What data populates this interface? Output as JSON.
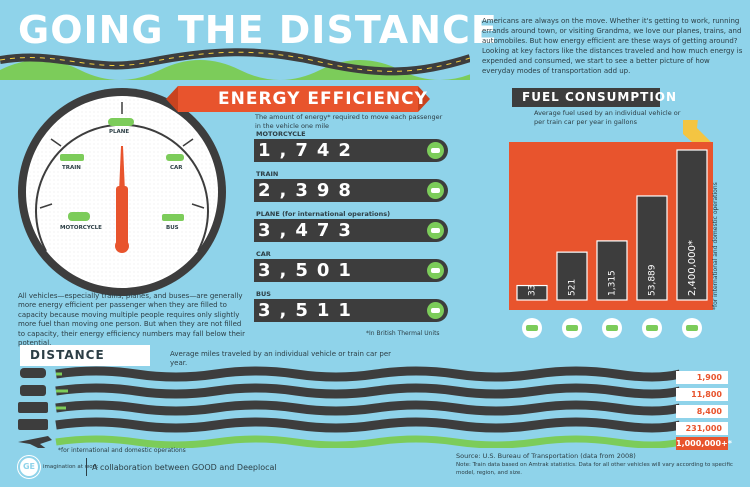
{
  "header": {
    "title": "GOING THE DISTANCE",
    "intro": "Americans are always on the move. Whether it's getting to work, running errands around town, or visiting Grandma, we love our planes, trains, and automobiles. But how energy efficient are these ways of getting around? Looking at key factors like the distances traveled and how much energy is expended and consumed, we start to see a better picture of how everyday modes of transportation add up."
  },
  "energy": {
    "title": "ENERGY EFFICIENCY",
    "description": "The amount of energy* required to move each passenger in the vehicle one mile",
    "footnote": "*In British Thermal Units",
    "body_text": "All vehicles—especially trains, planes, and buses—are generally more energy efficient per passenger when they are filled to capacity because moving multiple people requires only slightly more fuel than moving one person. But when they are not filled to capacity, their energy efficiency numbers may fall below their potential.",
    "gauge_labels": {
      "plane": "PLANE",
      "train": "TRAIN",
      "car": "CAR",
      "motorcycle": "MOTORCYCLE",
      "bus": "BUS"
    },
    "rows": [
      {
        "label": "MOTORCYCLE",
        "value": "1,742",
        "icon": "motorcycle-icon"
      },
      {
        "label": "TRAIN",
        "value": "2,398",
        "icon": "train-icon"
      },
      {
        "label": "PLANE (for international operations)",
        "value": "3,473",
        "icon": "plane-icon"
      },
      {
        "label": "CAR",
        "value": "3,501",
        "icon": "car-icon"
      },
      {
        "label": "BUS",
        "value": "3,511",
        "icon": "bus-icon"
      }
    ]
  },
  "fuel": {
    "title": "FUEL CONSUMPTION",
    "description": "Average fuel used by an individual vehicle or per train car per year in gallons",
    "side_note": "*for international and domestic operations",
    "icons": [
      "motorcycle-icon",
      "car-icon",
      "bus-icon",
      "train-icon",
      "plane-icon"
    ]
  },
  "distance": {
    "title": "DISTANCE",
    "description": "Average miles traveled by an individual vehicle or train car per year.",
    "footnote": "*for international and domestic operations",
    "rows": [
      {
        "icon": "motorcycle-icon",
        "value": "1,900"
      },
      {
        "icon": "car-icon",
        "value": "11,800"
      },
      {
        "icon": "bus-icon",
        "value": "8,400"
      },
      {
        "icon": "train-icon",
        "value": "231,000"
      },
      {
        "icon": "plane-icon",
        "value": "1,000,000+*"
      }
    ]
  },
  "footer": {
    "logo_text": "GE",
    "tagline": "imagination at work",
    "collab": "A collaboration between GOOD and Deeplocal",
    "source": "Source: U.S. Bureau of Transportation (data from 2008)",
    "note": "Note: Train data based on Amtrak statistics. Data for all other vehicles will vary according to specific model, region, and size."
  },
  "colors": {
    "background": "#8fd3ea",
    "accent": "#e8542d",
    "dark": "#3d3d3d",
    "green": "#7ccc5a"
  },
  "chart_data": {
    "type": "bar",
    "categories": [
      "Motorcycle",
      "Car",
      "Bus",
      "Train",
      "Plane"
    ],
    "values": [
      33,
      521,
      1315,
      53889,
      2400000
    ],
    "value_labels": [
      "33",
      "521",
      "1,315",
      "53,889",
      "2,400,000*"
    ],
    "title": "FUEL CONSUMPTION",
    "xlabel": "",
    "ylabel": ""
  }
}
